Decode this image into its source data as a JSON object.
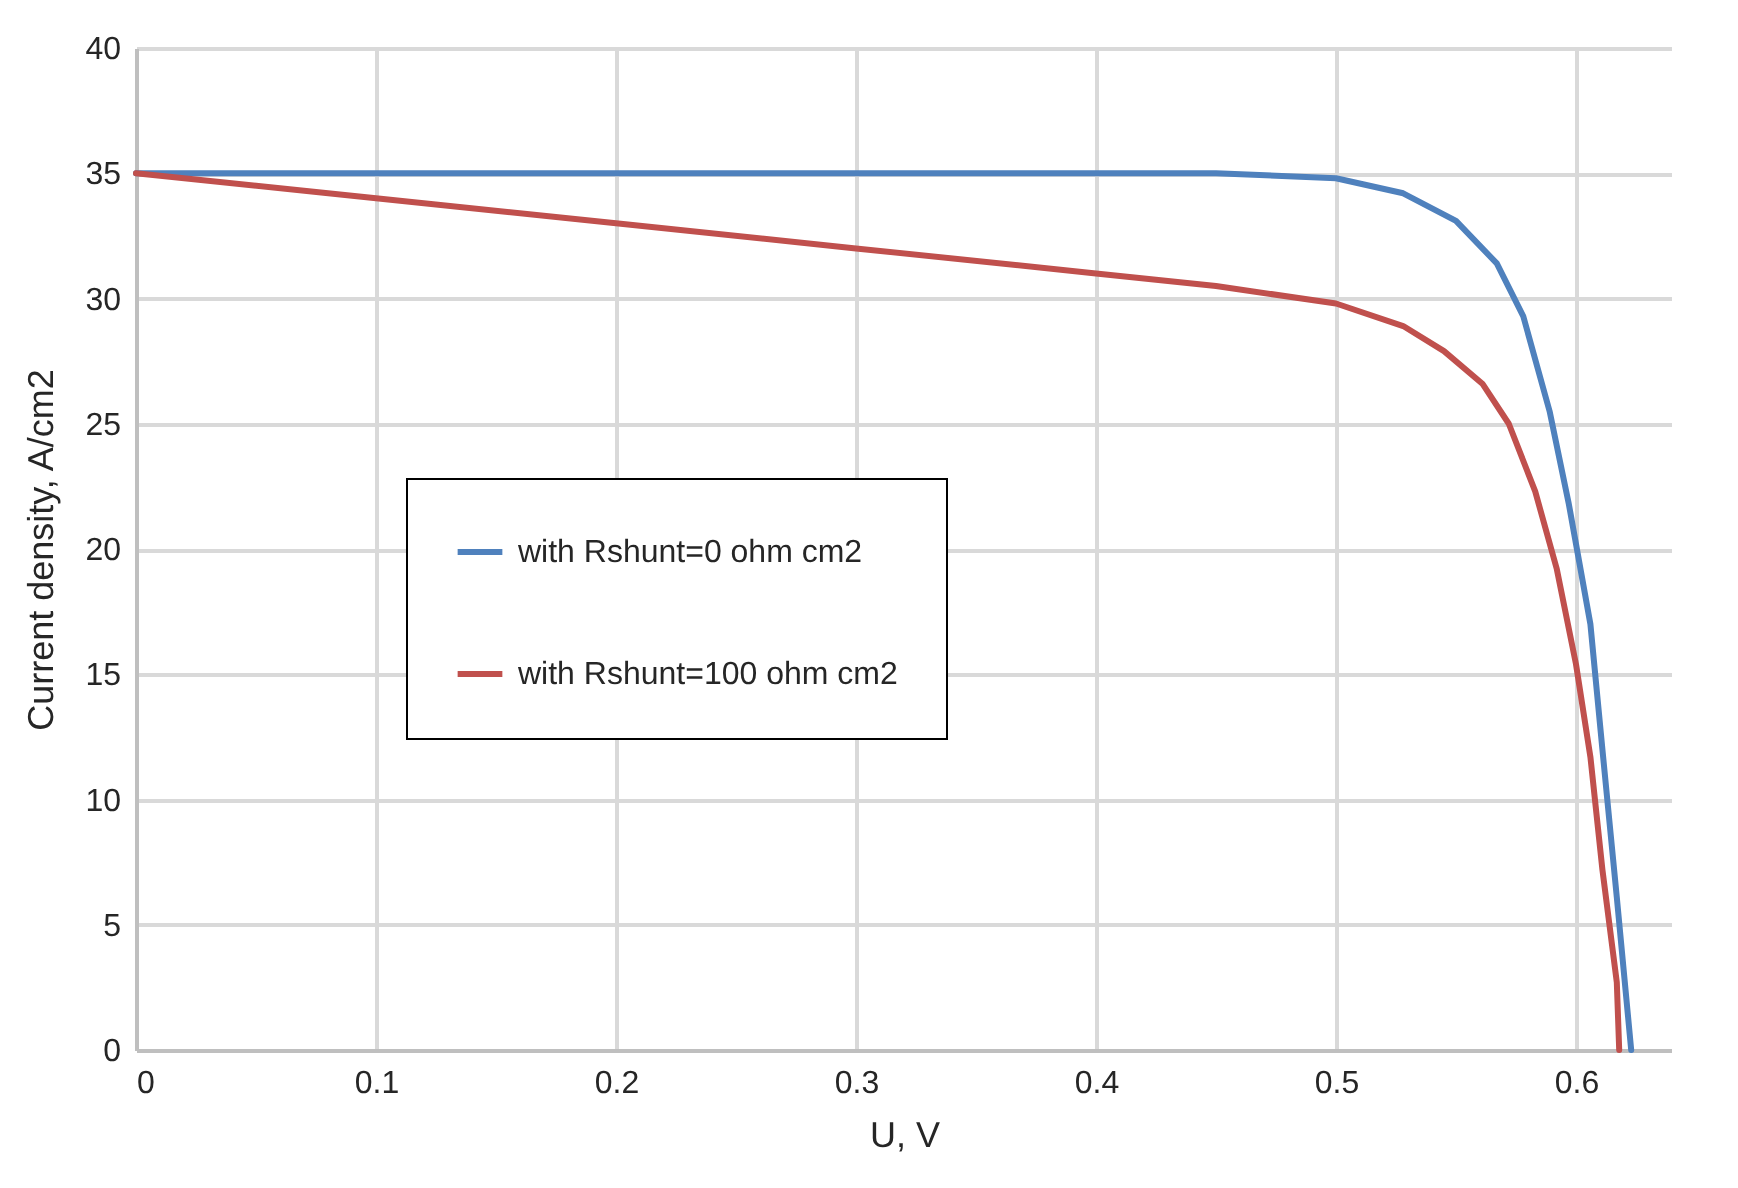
{
  "chart_data": {
    "type": "line",
    "xlabel": "U, V",
    "ylabel": "Current density, A/cm2",
    "xlim": [
      0,
      0.64
    ],
    "xticks": [
      0,
      0.1,
      0.2,
      0.3,
      0.4,
      0.5,
      0.6
    ],
    "ylim": [
      0,
      40
    ],
    "yticks": [
      0,
      5,
      10,
      15,
      20,
      25,
      30,
      35,
      40
    ],
    "grid": true,
    "legend": "left",
    "marker": "none",
    "line_style": "solid",
    "series": [
      {
        "name": "with Rshunt=0 ohm cm2",
        "color": "#4f81bd",
        "x": [
          0,
          0.1,
          0.2,
          0.3,
          0.4,
          0.45,
          0.5,
          0.528,
          0.55,
          0.567,
          0.578,
          0.589,
          0.597,
          0.606,
          0.611,
          0.617,
          0.623
        ],
        "values": [
          35,
          35,
          35,
          35,
          35,
          35,
          34.8,
          34.2,
          33.1,
          31.4,
          29.3,
          25.5,
          21.8,
          17.0,
          12.0,
          6.1,
          0
        ]
      },
      {
        "name": "with Rshunt=100 ohm cm2",
        "color": "#c0504d",
        "x": [
          0,
          0.1,
          0.2,
          0.3,
          0.4,
          0.45,
          0.5,
          0.528,
          0.545,
          0.561,
          0.572,
          0.583,
          0.592,
          0.6,
          0.606,
          0.611,
          0.617,
          0.618
        ],
        "values": [
          35,
          34,
          33,
          32,
          31,
          30.5,
          29.8,
          28.9,
          27.9,
          26.6,
          25.0,
          22.3,
          19.2,
          15.4,
          11.7,
          7.2,
          2.7,
          0
        ]
      }
    ]
  }
}
